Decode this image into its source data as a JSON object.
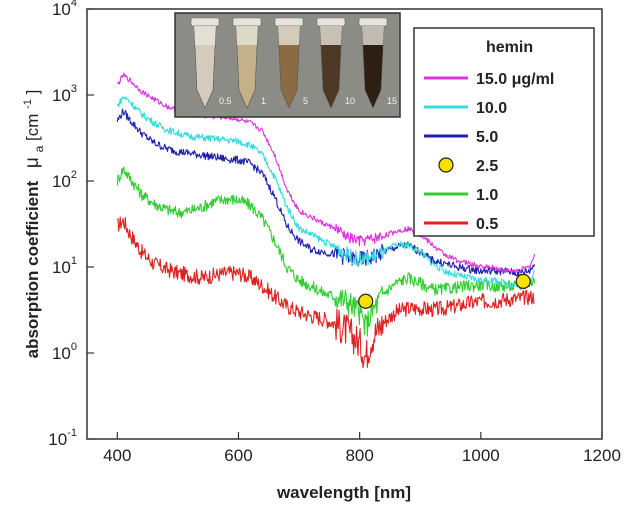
{
  "chart_data": {
    "type": "line",
    "xlabel": "wavelength [nm]",
    "ylabel": "absorption coefficient",
    "ylabel_symbol": "μ",
    "ylabel_subscript": "a",
    "ylabel_unit_open": " [cm",
    "ylabel_unit_exp": "-1",
    "ylabel_unit_close": "]",
    "xlim": [
      350,
      1200
    ],
    "ylim": [
      0.1,
      10000
    ],
    "yscale": "log",
    "grid": false,
    "legend_position": "top-right",
    "x_ticks": [
      {
        "value": 400,
        "label": "400"
      },
      {
        "value": 600,
        "label": "600"
      },
      {
        "value": 800,
        "label": "800"
      },
      {
        "value": 1000,
        "label": "1000"
      },
      {
        "value": 1200,
        "label": "1200"
      }
    ],
    "y_ticks": [
      {
        "value": 0.1,
        "base": "10",
        "exp": "-1"
      },
      {
        "value": 1,
        "base": "10",
        "exp": "0"
      },
      {
        "value": 10,
        "base": "10",
        "exp": "1"
      },
      {
        "value": 100,
        "base": "10",
        "exp": "2"
      },
      {
        "value": 1000,
        "base": "10",
        "exp": "3"
      },
      {
        "value": 10000,
        "base": "10",
        "exp": "4"
      }
    ],
    "legend_title": "hemin",
    "series": [
      {
        "name": "15.0 μg/ml",
        "color": "#dd33dd",
        "noise": 0.03,
        "x": [
          400,
          410,
          420,
          440,
          460,
          480,
          500,
          520,
          540,
          560,
          580,
          600,
          620,
          640,
          660,
          680,
          700,
          720,
          740,
          760,
          780,
          800,
          820,
          840,
          860,
          880,
          900,
          920,
          940,
          960,
          980,
          1000,
          1020,
          1040,
          1060,
          1080,
          1090
        ],
        "y": [
          1300,
          1700,
          1500,
          1100,
          900,
          750,
          650,
          600,
          570,
          560,
          550,
          520,
          470,
          380,
          200,
          80,
          45,
          38,
          32,
          28,
          22,
          20,
          21,
          23,
          26,
          28,
          24,
          18,
          14,
          12,
          11,
          10,
          10,
          9,
          9,
          10,
          14
        ]
      },
      {
        "name": "10.0",
        "color": "#33dddd",
        "noise": 0.04,
        "x": [
          400,
          410,
          420,
          440,
          460,
          480,
          500,
          520,
          540,
          560,
          580,
          600,
          620,
          640,
          660,
          680,
          700,
          720,
          740,
          760,
          780,
          800,
          820,
          840,
          860,
          880,
          900,
          920,
          940,
          960,
          980,
          1000,
          1020,
          1040,
          1060,
          1080,
          1090
        ],
        "y": [
          750,
          950,
          850,
          600,
          480,
          400,
          360,
          330,
          320,
          310,
          300,
          290,
          260,
          200,
          110,
          50,
          28,
          24,
          20,
          17,
          14,
          12,
          13,
          15,
          18,
          18,
          15,
          11,
          9,
          8,
          7.5,
          7,
          7,
          6.5,
          6,
          6.5,
          9
        ]
      },
      {
        "name": "5.0",
        "color": "#2020b0",
        "noise": 0.045,
        "x": [
          400,
          410,
          420,
          440,
          460,
          480,
          500,
          520,
          540,
          560,
          580,
          600,
          620,
          640,
          660,
          680,
          700,
          720,
          740,
          760,
          780,
          800,
          820,
          840,
          860,
          880,
          900,
          920,
          940,
          960,
          980,
          1000,
          1020,
          1040,
          1060,
          1080,
          1090
        ],
        "y": [
          500,
          650,
          520,
          360,
          280,
          240,
          220,
          210,
          200,
          190,
          180,
          175,
          160,
          120,
          65,
          30,
          20,
          16,
          15,
          14,
          13,
          12,
          13,
          15,
          17,
          18,
          15,
          12,
          11,
          10,
          9.5,
          9,
          9,
          9,
          8.5,
          9,
          11
        ]
      },
      {
        "name": "1.0",
        "color": "#33cc33",
        "noise": 0.07,
        "x": [
          400,
          410,
          420,
          440,
          460,
          480,
          500,
          520,
          540,
          560,
          580,
          600,
          620,
          640,
          660,
          680,
          700,
          720,
          740,
          760,
          780,
          800,
          810,
          820,
          840,
          860,
          880,
          900,
          920,
          940,
          960,
          980,
          1000,
          1020,
          1040,
          1060,
          1080,
          1090
        ],
        "y": [
          100,
          140,
          110,
          70,
          55,
          47,
          43,
          45,
          50,
          58,
          62,
          60,
          52,
          36,
          20,
          10,
          7,
          6,
          5,
          4.5,
          4,
          3,
          2,
          3,
          5,
          6.5,
          7.5,
          6.5,
          5.5,
          5.5,
          5.8,
          6,
          6.2,
          6,
          6,
          6,
          6.5,
          7
        ]
      },
      {
        "name": "0.5",
        "color": "#dd2222",
        "noise": 0.09,
        "x": [
          400,
          410,
          420,
          440,
          460,
          480,
          500,
          520,
          540,
          560,
          580,
          600,
          620,
          640,
          660,
          680,
          700,
          720,
          740,
          760,
          780,
          800,
          810,
          820,
          840,
          860,
          880,
          900,
          920,
          940,
          960,
          980,
          1000,
          1020,
          1040,
          1060,
          1080,
          1090
        ],
        "y": [
          30,
          35,
          25,
          15,
          11,
          9.5,
          8.5,
          8,
          7.5,
          8,
          8.5,
          8.5,
          7.5,
          6,
          4.5,
          3.5,
          3,
          2.7,
          2.5,
          2.2,
          1.8,
          1.3,
          0.9,
          1.5,
          2.3,
          3,
          3.3,
          3.3,
          3.2,
          3.3,
          3.5,
          3.8,
          4,
          4,
          4.2,
          4.3,
          4.5,
          4.5
        ]
      }
    ],
    "marker_series": {
      "name": "2.5",
      "color": "#f5e000",
      "edge": "#222222",
      "points": [
        {
          "x": 810,
          "y": 4
        },
        {
          "x": 1070,
          "y": 6.8
        }
      ]
    },
    "inset": {
      "labels": [
        "0.5",
        "1",
        "5",
        "10",
        "15"
      ],
      "tube_colors": [
        "#d8cfc0",
        "#c8b48a",
        "#8a6a40",
        "#4a3420",
        "#2a1a10"
      ]
    }
  }
}
